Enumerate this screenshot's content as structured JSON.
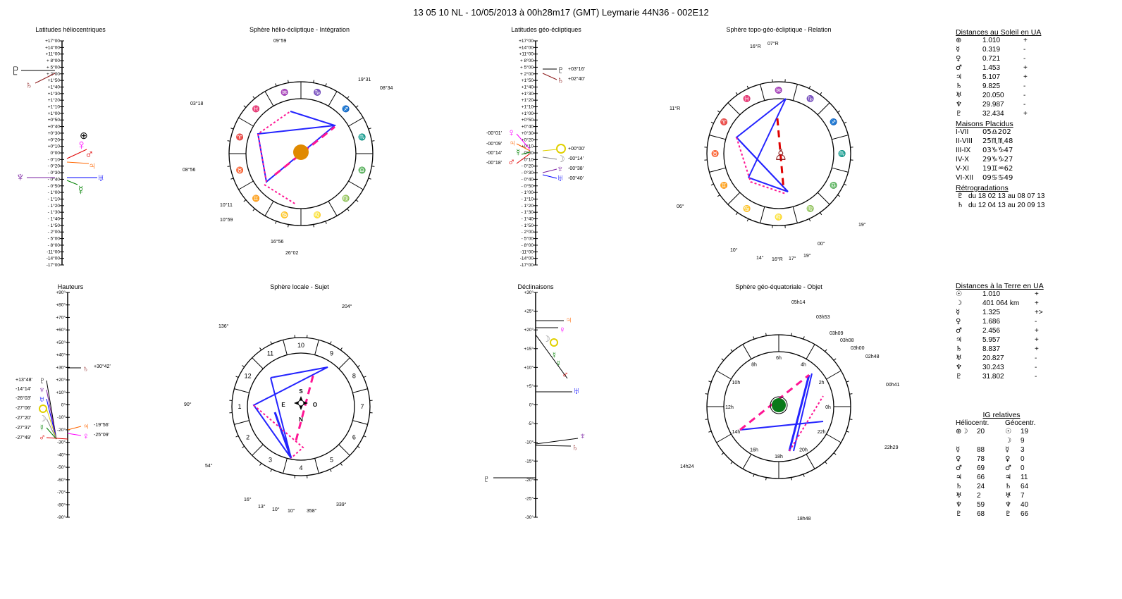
{
  "title": "13 05 10 NL    -   10/05/2013 à 00h28m17 (GMT)  Leymarie  44N36 - 002E12",
  "panels": {
    "lat_helio": "Latitudes héliocentriques",
    "sphere_helio": "Sphère hélio-écliptique - Intégration",
    "lat_geo": "Latitudes géo-écliptiques",
    "sphere_topo": "Sphère topo-géo-écliptique - Relation",
    "hauteurs": "Hauteurs",
    "sphere_locale": "Sphère locale - Sujet",
    "declinaisons": "Déclinaisons",
    "sphere_geo_eq": "Sphère géo-équatoriale - Objet"
  },
  "lat_scale": [
    "+17°00",
    "+14°00",
    "+11°00",
    "+ 8°00",
    "+ 5°00",
    "+ 2°00",
    "+1°50",
    "+1°40",
    "+1°30",
    "+1°20",
    "+1°10",
    "+1°00",
    "+0°50",
    "+0°40",
    "+0°30",
    "+0°20",
    "+0°10",
    "0°00",
    "- 0°10",
    "- 0°20",
    "- 0°30",
    "- 0°40",
    "- 0°50",
    "- 1°00",
    "- 1°10",
    "- 1°20",
    "- 1°30",
    "- 1°40",
    "- 1°50",
    "- 2°00",
    "- 5°00",
    "- 8°00",
    "-11°00",
    "-14°00",
    "-17°00"
  ],
  "haut_scale": [
    "+90°",
    "+80°",
    "+70°",
    "+60°",
    "+50°",
    "+40°",
    "+30°",
    "+20°",
    "+10°",
    "0°",
    "-10°",
    "-20°",
    "-30°",
    "-40°",
    "-50°",
    "-60°",
    "-70°",
    "-80°",
    "-90°"
  ],
  "decl_scale": [
    "+30°",
    "+25°",
    "+20°",
    "+15°",
    "+10°",
    "+5°",
    "0°",
    "-5°",
    "-10°",
    "-15°",
    "-20°",
    "-25°",
    "-30°"
  ],
  "lat_geo_labels": {
    "l1": "-00°01'",
    "l2": "-00°09'",
    "l3": "-00°14'",
    "l4": "-00°18'",
    "r1": "+03°16'",
    "r2": "+02°40'",
    "r3": "+00°00'",
    "r4": "-00°14'",
    "r5": "-00°38'",
    "r6": "-00°40'"
  },
  "haut_labels": {
    "l1": "+13°48'",
    "l2": "-14°14'",
    "l3": "-26°03'",
    "l4": "-27°06'",
    "l5": "-27°20'",
    "l6": "-27°37'",
    "l7": "-27°49'",
    "r1": "+30°42'",
    "r2": "-19°56'",
    "r3": "-25°09'"
  },
  "helio_labels": {
    "a1": "09°59",
    "a2": "19°31",
    "a3": "08°34",
    "a4": "03°18",
    "a5": "08°56",
    "a6": "10°11",
    "a7": "10°59",
    "a8": "16°56",
    "a9": "26°02"
  },
  "topo_labels": {
    "a1": "16°R",
    "a2": "07°R",
    "a3": "11°R",
    "a4": "06°",
    "a5": "19°",
    "a6": "10°",
    "a7": "14°",
    "a8": "16°R",
    "a9": "17°",
    "a10": "19°",
    "a11": "00°"
  },
  "locale_labels": {
    "a1": "204°",
    "a2": "136°",
    "a3": "90°",
    "a4": "54°",
    "a5": "16°",
    "a6": "13°",
    "a7": "10°",
    "a8": "10°",
    "a9": "358°",
    "a10": "339°",
    "houses": [
      "10",
      "9",
      "8",
      "7",
      "6",
      "5",
      "4",
      "3",
      "2",
      "1",
      "12",
      "11"
    ],
    "compass": [
      "S",
      "E",
      "O",
      "N"
    ]
  },
  "geo_eq_labels": {
    "a1": "05h14",
    "a2": "03h53",
    "a3": "03h09",
    "a4": "03h08",
    "a5": "03h00",
    "a6": "02h48",
    "a7": "00h41",
    "a8": "22h29",
    "a9": "18h48",
    "a10": "14h24",
    "hours": [
      "6h",
      "4h",
      "2h",
      "0h",
      "22h",
      "20h",
      "18h",
      "16h",
      "14h",
      "12h",
      "10h",
      "8h"
    ]
  },
  "sun_dist": {
    "heading": "Distances au Soleil en UA",
    "rows": [
      {
        "sym": "⊕",
        "val": "1.010",
        "sign": "+"
      },
      {
        "sym": "☿",
        "val": "0.319",
        "sign": "-"
      },
      {
        "sym": "♀",
        "val": "0.721",
        "sign": "-"
      },
      {
        "sym": "♂",
        "val": "1.453",
        "sign": "+"
      },
      {
        "sym": "♃",
        "val": "5.107",
        "sign": "+"
      },
      {
        "sym": "♄",
        "val": "9.825",
        "sign": "-"
      },
      {
        "sym": "♅",
        "val": "20.050",
        "sign": "-"
      },
      {
        "sym": "♆",
        "val": "29.987",
        "sign": "-"
      },
      {
        "sym": "♇",
        "val": "32.434",
        "sign": "+"
      }
    ]
  },
  "houses": {
    "heading": "Maisons Placidus",
    "rows": [
      {
        "k": "I-VII",
        "v": "05♎202"
      },
      {
        "k": "II-VIII",
        "v": "25♏♏48"
      },
      {
        "k": "III-IX",
        "v": "03♑♑47"
      },
      {
        "k": "IV-X",
        "v": "29♑♑27"
      },
      {
        "k": "V-XI",
        "v": "19♊♒62"
      },
      {
        "k": "VI-XII",
        "v": "09♋♋49"
      }
    ]
  },
  "retro": {
    "heading": "Rétrogradations",
    "rows": [
      {
        "sym": "♇",
        "txt": "du 18 02 13 au 08 07 13"
      },
      {
        "sym": "♄",
        "txt": "du 12 04 13 au 20 09 13"
      }
    ]
  },
  "earth_dist": {
    "heading": "Distances à la Terre en UA",
    "rows": [
      {
        "sym": "☉",
        "val": "1.010",
        "sign": "+"
      },
      {
        "sym": "☽",
        "val": "401 064 km",
        "sign": "+"
      },
      {
        "sym": "☿",
        "val": "1.325",
        "sign": "+>"
      },
      {
        "sym": "♀",
        "val": "1.686",
        "sign": "-"
      },
      {
        "sym": "♂",
        "val": "2.456",
        "sign": "+"
      },
      {
        "sym": "♃",
        "val": "5.957",
        "sign": "+"
      },
      {
        "sym": "♄",
        "val": "8.837",
        "sign": "+"
      },
      {
        "sym": "♅",
        "val": "20.827",
        "sign": "-"
      },
      {
        "sym": "♆",
        "val": "30.243",
        "sign": "-"
      },
      {
        "sym": "♇",
        "val": "31.802",
        "sign": "-"
      }
    ]
  },
  "ig": {
    "heading": "IG relatives",
    "col1": "Héliocentr.",
    "col2": "Géocentr.",
    "rows": [
      {
        "s1": "⊕☽",
        "v1": "20",
        "s2": "☉",
        "v2": "19"
      },
      {
        "s1": "",
        "v1": "",
        "s2": "☽",
        "v2": "9"
      },
      {
        "s1": "☿",
        "v1": "88",
        "s2": "☿",
        "v2": "3"
      },
      {
        "s1": "♀",
        "v1": "78",
        "s2": "♀",
        "v2": "0"
      },
      {
        "s1": "♂",
        "v1": "69",
        "s2": "♂",
        "v2": "0"
      },
      {
        "s1": "♃",
        "v1": "66",
        "s2": "♃",
        "v2": "11"
      },
      {
        "s1": "♄",
        "v1": "24",
        "s2": "♄",
        "v2": "64"
      },
      {
        "s1": "♅",
        "v1": "2",
        "s2": "♅",
        "v2": "7"
      },
      {
        "s1": "♆",
        "v1": "59",
        "s2": "♆",
        "v2": "40"
      },
      {
        "s1": "♇",
        "v1": "68",
        "s2": "♇",
        "v2": "66"
      }
    ]
  }
}
